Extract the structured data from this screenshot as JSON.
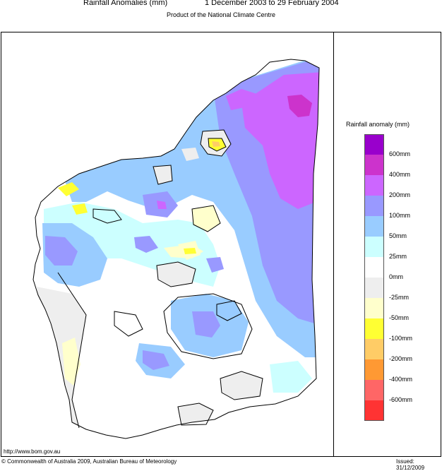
{
  "header": {
    "title": "Rainfall Anomalies (mm)",
    "period": "1 December 2003 to 29 February 2004",
    "subtitle": "Product of the National Climate Centre"
  },
  "legend": {
    "title": "Rainfall anomaly (mm)",
    "items": [
      {
        "color": "#9900cc",
        "label": "600mm"
      },
      {
        "color": "#cc33cc",
        "label": "400mm"
      },
      {
        "color": "#cc66ff",
        "label": "200mm"
      },
      {
        "color": "#9999ff",
        "label": "100mm"
      },
      {
        "color": "#99ccff",
        "label": "50mm"
      },
      {
        "color": "#ccffff",
        "label": "25mm"
      },
      {
        "color": "#ffffff",
        "label": "0mm"
      },
      {
        "color": "#eeeeee",
        "label": "-25mm"
      },
      {
        "color": "#ffffcc",
        "label": "-50mm"
      },
      {
        "color": "#ffff33",
        "label": "-100mm"
      },
      {
        "color": "#ffcc66",
        "label": "-200mm"
      },
      {
        "color": "#ff9933",
        "label": "-400mm"
      },
      {
        "color": "#ff6666",
        "label": "-600mm"
      },
      {
        "color": "#ff3333",
        "label": ""
      }
    ]
  },
  "footer": {
    "url": "http://www.bom.gov.au",
    "copyright": "© Commonwealth of Australia 2009, Australian Bureau of Meteorology",
    "issued": "Issued: 31/12/2009"
  }
}
